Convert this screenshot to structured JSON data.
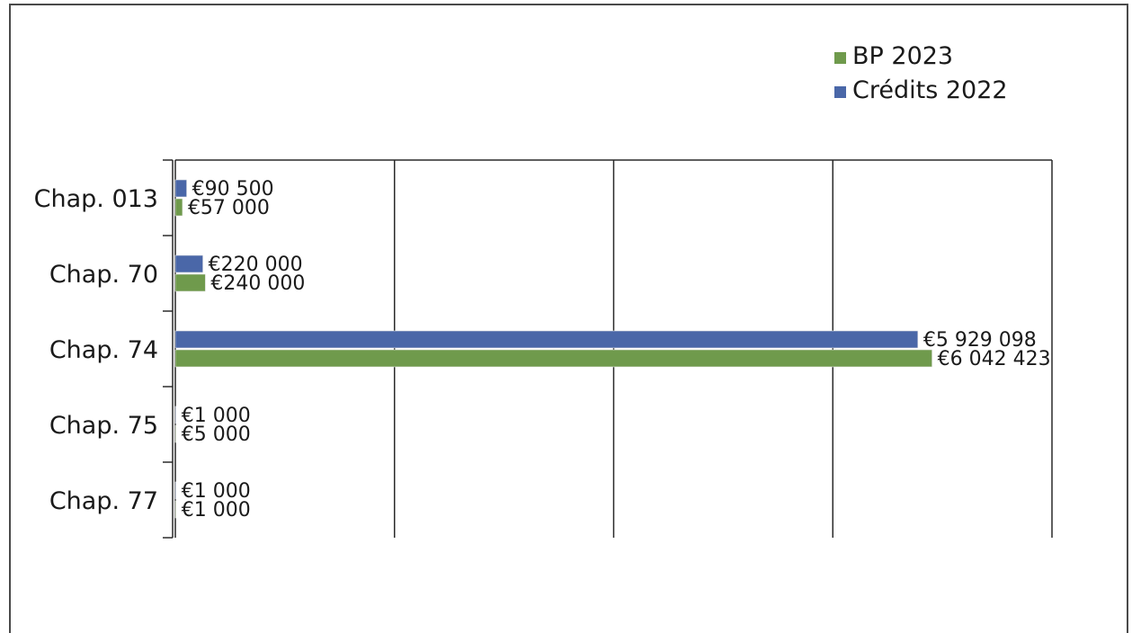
{
  "chart_data": {
    "type": "bar",
    "orientation": "horizontal",
    "categories": [
      "Chap. 013",
      "Chap. 70",
      "Chap. 74",
      "Chap. 75",
      "Chap. 77"
    ],
    "series": [
      {
        "name": "Crédits 2022",
        "color": "#4a67a8",
        "values": [
          90500,
          220000,
          5929098,
          1000,
          1000
        ],
        "labels": [
          "€90 500",
          "€220 000",
          "€5 929 098",
          "€1 000",
          "€1 000"
        ]
      },
      {
        "name": "BP 2023",
        "color": "#6f9a4c",
        "values": [
          57000,
          240000,
          6042423,
          5000,
          1000
        ],
        "labels": [
          "€57 000",
          "€240 000",
          "€6 042 423",
          "€5 000",
          "€1 000"
        ]
      }
    ],
    "legend": [
      {
        "name": "BP 2023",
        "color": "#6f9a4c"
      },
      {
        "name": "Crédits 2022",
        "color": "#4a67a8"
      }
    ],
    "legend_position": "top-right",
    "xlim": [
      0,
      7000000
    ],
    "x_gridlines": [
      0,
      1750000,
      3500000,
      5250000,
      7000000
    ],
    "grid": true,
    "title": "",
    "xlabel": "",
    "ylabel": ""
  }
}
